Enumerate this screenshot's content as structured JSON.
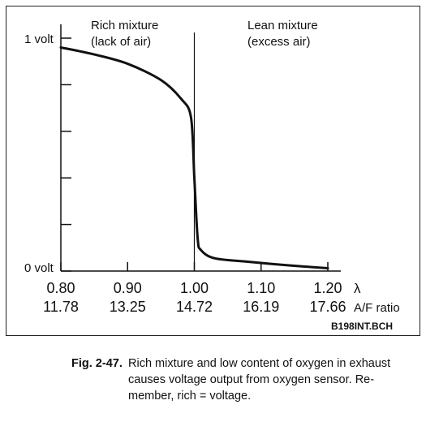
{
  "chart_data": {
    "type": "line",
    "x_lambda": [
      0.8,
      0.85,
      0.9,
      0.95,
      0.98,
      0.995,
      1.0,
      1.005,
      1.01,
      1.03,
      1.08,
      1.14,
      1.2
    ],
    "y_volt": [
      0.96,
      0.93,
      0.89,
      0.82,
      0.74,
      0.66,
      0.4,
      0.14,
      0.09,
      0.055,
      0.04,
      0.025,
      0.012
    ],
    "xlim": [
      0.8,
      1.2
    ],
    "ylim": [
      0,
      1
    ],
    "y_ticks": [
      0,
      0.2,
      0.4,
      0.6,
      0.8,
      1.0
    ],
    "y_tick_labels": {
      "top": "1 volt",
      "bottom": "0 volt"
    },
    "x_tick_lambda": [
      "0.80",
      "0.90",
      "1.00",
      "1.10",
      "1.20"
    ],
    "x_tick_af": [
      "11.78",
      "13.25",
      "14.72",
      "16.19",
      "17.66"
    ],
    "x_unit_lambda": "λ",
    "x_unit_af": "A/F ratio",
    "stoichiometric_line_x": 1.0,
    "region_left": {
      "line1": "Rich mixture",
      "line2": "(lack of air)"
    },
    "region_right": {
      "line1": "Lean mixture",
      "line2": "(excess air)"
    },
    "reference": "B198INT.BCH"
  },
  "caption": {
    "label": "Fig. 2-47.",
    "line1": "Rich mixture and low content of oxygen in exhaust",
    "line2": "causes voltage output from oxygen sensor. Re-",
    "line3": "member, rich = voltage."
  },
  "colors": {
    "ink": "#111111",
    "background": "#ffffff"
  }
}
